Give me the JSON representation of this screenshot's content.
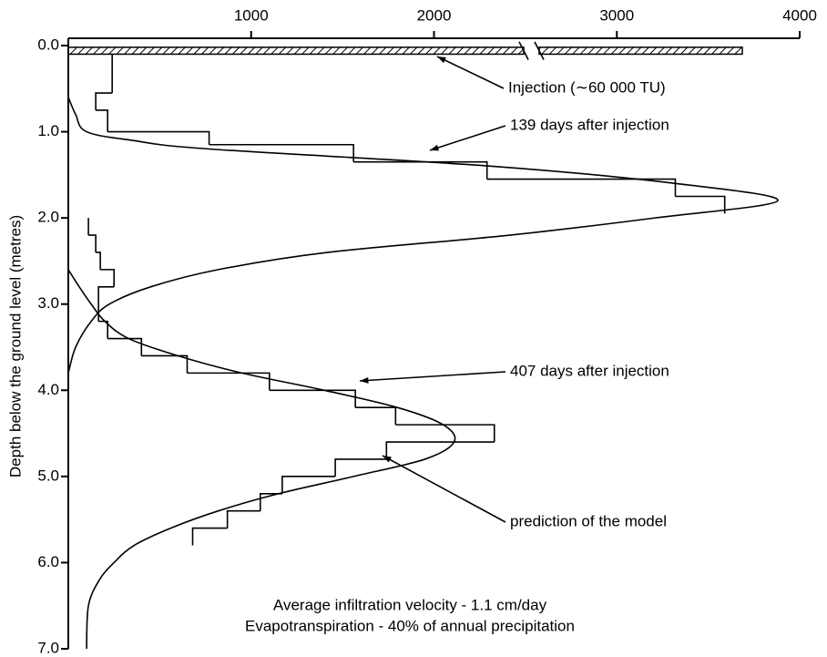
{
  "chart_data": {
    "type": "depth-profile",
    "y_label": "Depth below the ground level (metres)",
    "xlim": [
      0,
      4000
    ],
    "xticks": [
      1000,
      2000,
      3000,
      4000
    ],
    "ylim": [
      0,
      7
    ],
    "y_inverted": true,
    "yticks": [
      {
        "value": 0,
        "label": "0.0"
      },
      {
        "value": 1,
        "label": "1.0"
      },
      {
        "value": 2,
        "label": "2.0"
      },
      {
        "value": 3,
        "label": "3.0"
      },
      {
        "value": 4,
        "label": "4.0"
      },
      {
        "value": 5,
        "label": "5.0"
      },
      {
        "value": 6,
        "label": "6.0"
      },
      {
        "value": 7,
        "label": "7.0"
      }
    ],
    "color": "#000000",
    "injection": {
      "name": "Injection (∼60 000 TU)",
      "value": 60000,
      "depth": [
        0.02,
        0.1
      ]
    },
    "series": [
      {
        "name": "139 days after injection",
        "depth_bins": [
          0.1,
          0.55,
          0.75,
          1.0,
          1.15,
          1.35,
          1.55,
          1.75,
          1.95
        ],
        "values": [
          240,
          150,
          215,
          770,
          1560,
          2290,
          3320,
          3590
        ]
      },
      {
        "name": "407 days after injection",
        "depth_bins": [
          2.0,
          2.2,
          2.4,
          2.6,
          2.8,
          3.0,
          3.2,
          3.4,
          3.6,
          3.8,
          4.0,
          4.2,
          4.4,
          4.6,
          4.8,
          5.0,
          5.2,
          5.4,
          5.6,
          5.8
        ],
        "values": [
          110,
          150,
          175,
          250,
          165,
          165,
          215,
          400,
          650,
          1100,
          1570,
          1790,
          2330,
          1740,
          1460,
          1170,
          1050,
          870,
          680
        ]
      }
    ],
    "model": {
      "name": "prediction of the model",
      "curves": [
        {
          "depth": [
            0.6,
            0.8,
            1.0,
            1.1,
            1.2,
            1.4,
            1.6,
            1.8,
            2.0,
            2.2,
            2.4,
            2.6,
            2.8,
            3.0,
            3.2,
            3.5,
            3.8
          ],
          "values": [
            0,
            40,
            100,
            350,
            770,
            2316,
            3320,
            3880,
            3210,
            2415,
            1420,
            820,
            450,
            225,
            125,
            40,
            0
          ]
        },
        {
          "depth": [
            2.6,
            2.8,
            3.0,
            3.2,
            3.4,
            3.6,
            3.8,
            4.0,
            4.2,
            4.4,
            4.6,
            4.8,
            5.0,
            5.2,
            5.4,
            5.6,
            5.8,
            6.0,
            6.2,
            6.5,
            7.0
          ],
          "values": [
            0,
            60,
            125,
            200,
            330,
            600,
            950,
            1400,
            1800,
            2050,
            2110,
            1950,
            1560,
            1150,
            820,
            560,
            360,
            250,
            170,
            110,
            100
          ]
        }
      ]
    },
    "notes": [
      "Average infiltration velocity - 1.1 cm/day",
      "Evapotranspiration - 40% of annual precipitation"
    ]
  }
}
